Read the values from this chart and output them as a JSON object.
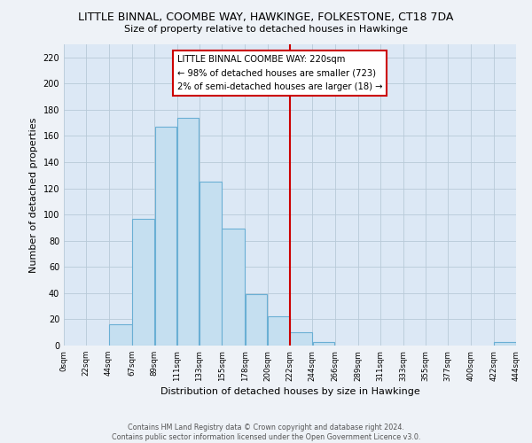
{
  "title": "LITTLE BINNAL, COOMBE WAY, HAWKINGE, FOLKESTONE, CT18 7DA",
  "subtitle": "Size of property relative to detached houses in Hawkinge",
  "xlabel": "Distribution of detached houses by size in Hawkinge",
  "ylabel": "Number of detached properties",
  "bar_color": "#c5dff0",
  "bar_edge_color": "#6aafd4",
  "vline_x": 222,
  "vline_color": "#cc0000",
  "annotation_title": "LITTLE BINNAL COOMBE WAY: 220sqm",
  "annotation_line1": "← 98% of detached houses are smaller (723)",
  "annotation_line2": "2% of semi-detached houses are larger (18) →",
  "annotation_box_color": "#ffffff",
  "annotation_box_edge": "#cc0000",
  "tick_labels": [
    "0sqm",
    "22sqm",
    "44sqm",
    "67sqm",
    "89sqm",
    "111sqm",
    "133sqm",
    "155sqm",
    "178sqm",
    "200sqm",
    "222sqm",
    "244sqm",
    "266sqm",
    "289sqm",
    "311sqm",
    "333sqm",
    "355sqm",
    "377sqm",
    "400sqm",
    "422sqm",
    "444sqm"
  ],
  "bin_edges": [
    0,
    22,
    44,
    67,
    89,
    111,
    133,
    155,
    178,
    200,
    222,
    244,
    266,
    289,
    311,
    333,
    355,
    377,
    400,
    422,
    444
  ],
  "bar_heights": [
    0,
    0,
    16,
    97,
    167,
    174,
    125,
    89,
    39,
    22,
    10,
    3,
    0,
    0,
    0,
    0,
    0,
    0,
    0,
    3
  ],
  "ylim": [
    0,
    230
  ],
  "yticks": [
    0,
    20,
    40,
    60,
    80,
    100,
    120,
    140,
    160,
    180,
    200,
    220
  ],
  "footer_line1": "Contains HM Land Registry data © Crown copyright and database right 2024.",
  "footer_line2": "Contains public sector information licensed under the Open Government Licence v3.0.",
  "bg_color": "#eef2f7",
  "plot_bg_color": "#dce8f5",
  "grid_color": "#b8cad8"
}
